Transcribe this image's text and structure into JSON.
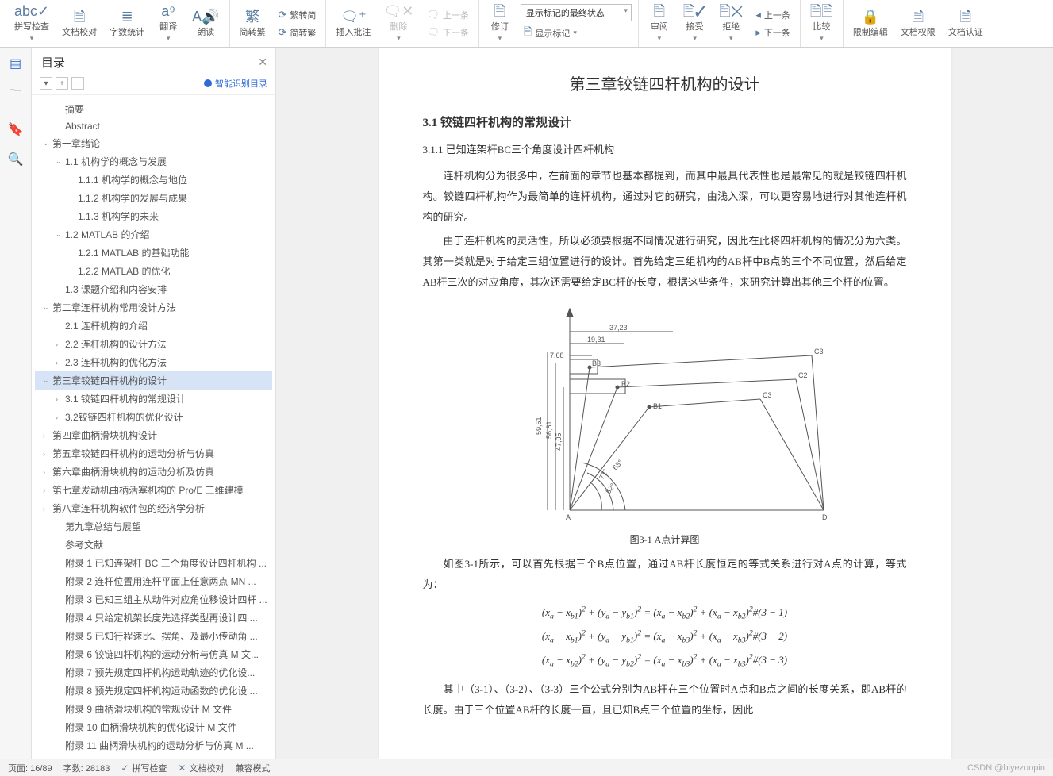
{
  "ribbon": {
    "spellcheck": "拼写检查",
    "doc_proofread": "文档校对",
    "word_count": "字数统计",
    "translate": "翻译",
    "read_aloud": "朗读",
    "trad_simp_toggle": "简转繁",
    "trad_to_simp": "繁转简",
    "simp_to_trad": "简转繁",
    "insert_comment": "插入批注",
    "delete": "删除",
    "prev_comment": "上一条",
    "next_comment": "下一条",
    "revise": "修订",
    "track_state": "显示标记的最终状态",
    "show_markup": "显示标记",
    "review": "审阅",
    "accept": "接受",
    "reject": "拒绝",
    "prev_change": "上一条",
    "next_change": "下一条",
    "compare": "比较",
    "restrict_edit": "限制编辑",
    "doc_permission": "文档权限",
    "doc_auth": "文档认证"
  },
  "outline": {
    "title": "目录",
    "ai_label": "智能识别目录",
    "items": [
      {
        "level": 1,
        "caret": "",
        "label": "摘要"
      },
      {
        "level": 1,
        "caret": "",
        "label": "Abstract"
      },
      {
        "level": 0,
        "caret": "v",
        "label": "第一章绪论"
      },
      {
        "level": 1,
        "caret": "v",
        "label": "1.1 机构学的概念与发展"
      },
      {
        "level": 2,
        "caret": "",
        "label": "1.1.1 机构学的概念与地位"
      },
      {
        "level": 2,
        "caret": "",
        "label": "1.1.2 机构学的发展与成果"
      },
      {
        "level": 2,
        "caret": "",
        "label": "1.1.3 机构学的未来"
      },
      {
        "level": 1,
        "caret": "v",
        "label": "1.2 MATLAB 的介绍"
      },
      {
        "level": 2,
        "caret": "",
        "label": "1.2.1 MATLAB 的基础功能"
      },
      {
        "level": 2,
        "caret": "",
        "label": "1.2.2 MATLAB 的优化"
      },
      {
        "level": 1,
        "caret": "",
        "label": "1.3 课题介绍和内容安排"
      },
      {
        "level": 0,
        "caret": "v",
        "label": "第二章连杆机构常用设计方法"
      },
      {
        "level": 1,
        "caret": "",
        "label": "2.1 连杆机构的介绍"
      },
      {
        "level": 1,
        "caret": ">",
        "label": "2.2 连杆机构的设计方法"
      },
      {
        "level": 1,
        "caret": ">",
        "label": "2.3 连杆机构的优化方法"
      },
      {
        "level": 0,
        "caret": "v",
        "label": "第三章铰链四杆机构的设计",
        "selected": true
      },
      {
        "level": 1,
        "caret": ">",
        "label": "3.1 铰链四杆机构的常规设计"
      },
      {
        "level": 1,
        "caret": ">",
        "label": "3.2铰链四杆机构的优化设计"
      },
      {
        "level": 0,
        "caret": ">",
        "label": "第四章曲柄滑块机构设计"
      },
      {
        "level": 0,
        "caret": ">",
        "label": "第五章铰链四杆机构的运动分析与仿真"
      },
      {
        "level": 0,
        "caret": ">",
        "label": "第六章曲柄滑块机构的运动分析及仿真"
      },
      {
        "level": 0,
        "caret": ">",
        "label": "第七章发动机曲柄活塞机构的 Pro/E 三维建模"
      },
      {
        "level": 0,
        "caret": ">",
        "label": "第八章连杆机构软件包的经济学分析"
      },
      {
        "level": 1,
        "caret": "",
        "label": "第九章总结与展望"
      },
      {
        "level": 1,
        "caret": "",
        "label": "参考文献"
      },
      {
        "level": 1,
        "caret": "",
        "label": "附录 1 已知连架杆 BC 三个角度设计四杆机构 ..."
      },
      {
        "level": 1,
        "caret": "",
        "label": "附录 2 连杆位置用连杆平面上任意两点 MN ..."
      },
      {
        "level": 1,
        "caret": "",
        "label": "附录 3 已知三组主从动件对应角位移设计四杆 ..."
      },
      {
        "level": 1,
        "caret": "",
        "label": "附录 4 只给定机架长度先选择类型再设计四 ..."
      },
      {
        "level": 1,
        "caret": "",
        "label": "附录 5 已知行程速比、摆角、及最小传动角 ..."
      },
      {
        "level": 1,
        "caret": "",
        "label": "附录 6 铰链四杆机构的运动分析与仿真 M 文..."
      },
      {
        "level": 1,
        "caret": "",
        "label": "附录 7 预先规定四杆机构运动轨迹的优化设..."
      },
      {
        "level": 1,
        "caret": "",
        "label": "附录 8 预先规定四杆机构运动函数的优化设 ..."
      },
      {
        "level": 1,
        "caret": "",
        "label": "附录 9 曲柄滑块机构的常规设计 M 文件"
      },
      {
        "level": 1,
        "caret": "",
        "label": "附录 10 曲柄滑块机构的优化设计 M 文件"
      },
      {
        "level": 1,
        "caret": "",
        "label": "附录 11 曲柄滑块机构的运动分析与仿真 M ..."
      },
      {
        "level": 1,
        "caret": "",
        "label": "致谢"
      }
    ]
  },
  "doc": {
    "chapter_title": "第三章铰链四杆机构的设计",
    "section_title": "3.1 铰链四杆机构的常规设计",
    "subsection_title": "3.1.1 已知连架杆BC三个角度设计四杆机构",
    "para1": "连杆机构分为很多中，在前面的章节也基本都提到，而其中最具代表性也是最常见的就是铰链四杆机构。铰链四杆机构作为最简单的连杆机构，通过对它的研究，由浅入深，可以更容易地进行对其他连杆机构的研究。",
    "para2": "由于连杆机构的灵活性，所以必须要根据不同情况进行研究，因此在此将四杆机构的情况分为六类。其第一类就是对于给定三组位置进行的设计。首先给定三组机构的AB杆中B点的三个不同位置，然后给定AB杆三次的对应角度，其次还需要给定BC杆的长度，根据这些条件，来研究计算出其他三个杆的位置。",
    "fig_caption": "图3-1 A点计算图",
    "para3": "如图3-1所示，可以首先根据三个B点位置，通过AB杆长度恒定的等式关系进行对A点的计算，等式为：",
    "eq1": "(xₐ − x_b1)² + (yₐ − y_b1)² = (xₐ − x_b2)² + (xₐ − x_b2)²#(3 − 1)",
    "eq2": "(xₐ − x_b1)² + (yₐ − y_b1)² = (xₐ − x_b3)² + (xₐ − x_b3)²#(3 − 2)",
    "eq3": "(xₐ − x_b2)² + (yₐ − y_b2)² = (xₐ − x_b3)² + (xₐ − x_b3)²#(3 − 3)",
    "para4": "其中（3-1）、（3-2）、（3-3）三个公式分别为AB杆在三个位置时A点和B点之间的长度关系，即AB杆的长度。由于三个位置AB杆的长度一直，且已知B点三个位置的坐标，因此",
    "diagram": {
      "dims": {
        "37_23": "37,23",
        "19_31": "19,31",
        "7_68": "7,68",
        "59_51": "59,51",
        "56_81": "56,81",
        "47_05": "47,05"
      },
      "angles": {
        "a63": "63°",
        "a71": "71°",
        "a52": "52°"
      },
      "labels": {
        "A": "A",
        "B1": "B1",
        "B2": "B2",
        "B3": "B3",
        "C1": "C1",
        "C2": "C2",
        "C3": "C3",
        "D": "D"
      },
      "stroke": "#555555",
      "thin": 1,
      "font": 9
    }
  },
  "status": {
    "page": "页面: 16/89",
    "words": "字数: 28183",
    "spell": "拼写检查",
    "proof": "文档校对",
    "compat": "兼容模式",
    "watermark": "CSDN @biyezuopin"
  }
}
